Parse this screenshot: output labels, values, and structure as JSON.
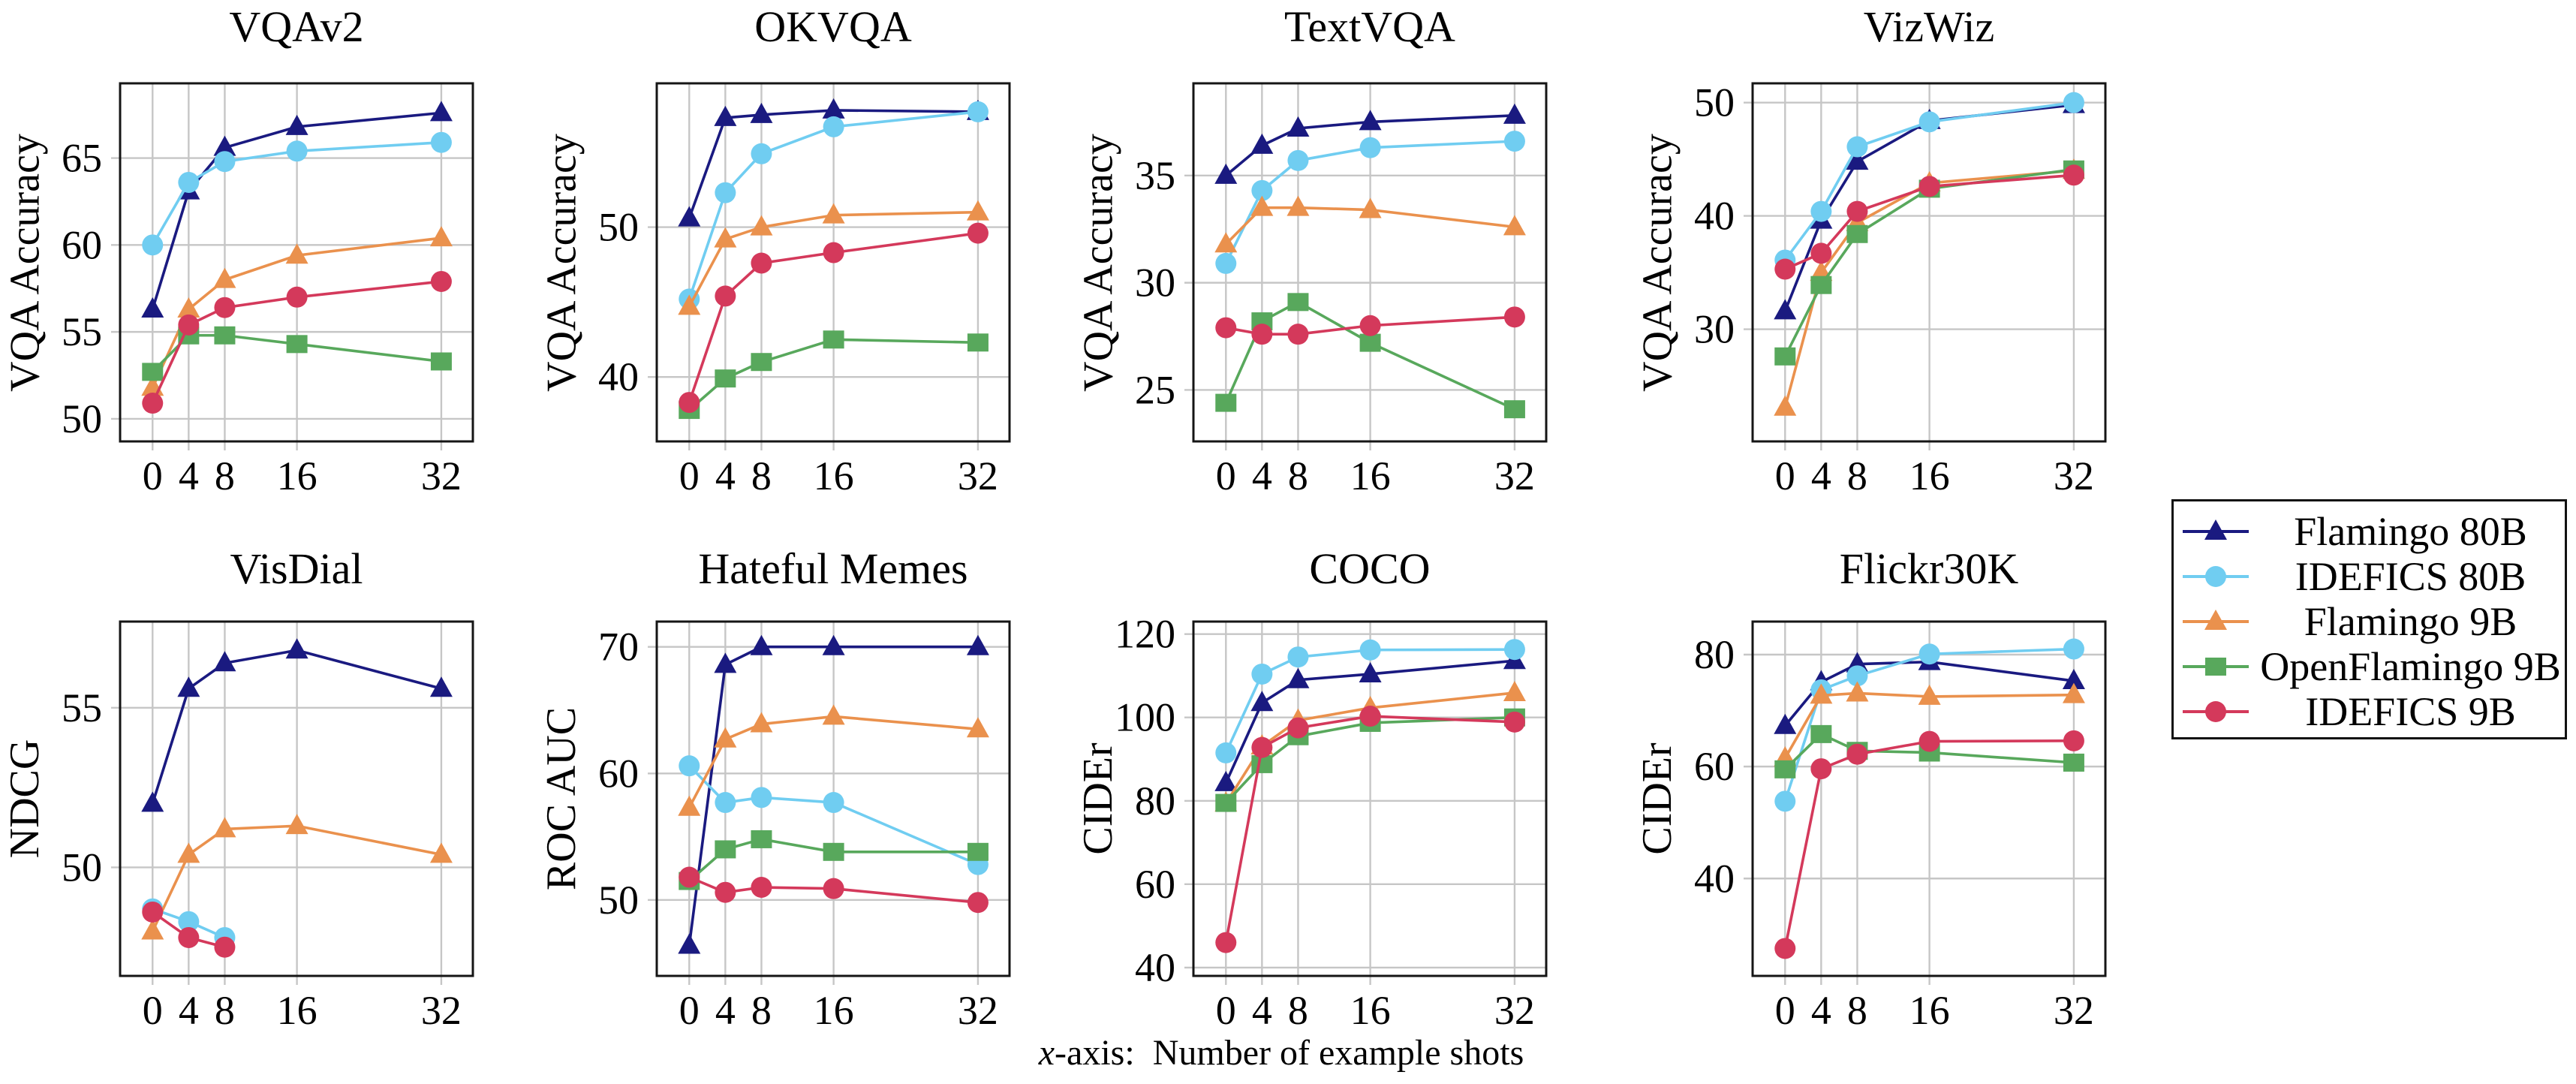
{
  "figure": {
    "caption_italic_x": "x",
    "caption_rest": "-axis:  Number of example shots"
  },
  "legend": {
    "position": "right-center",
    "entries": [
      {
        "label": "Flamingo 80B",
        "color": "#1a1a80",
        "marker": "triangle"
      },
      {
        "label": "IDEFICS 80B",
        "color": "#70cdf1",
        "marker": "circle"
      },
      {
        "label": "Flamingo 9B",
        "color": "#ea914d",
        "marker": "triangle"
      },
      {
        "label": "OpenFlamingo 9B",
        "color": "#58a85c",
        "marker": "square"
      },
      {
        "label": "IDEFICS 9B",
        "color": "#d4395b",
        "marker": "circle"
      }
    ]
  },
  "chart_data": [
    {
      "type": "line",
      "title": "VQAv2",
      "ylabel": "VQA Accuracy",
      "x": [
        0,
        4,
        8,
        16,
        32
      ],
      "xlim": [
        -3.6,
        35.5
      ],
      "yticks": [
        50,
        55,
        60,
        65
      ],
      "ylim": [
        48.7,
        69.3
      ],
      "grid": true,
      "series": [
        {
          "name": "Flamingo 80B",
          "values": [
            56.3,
            63.1,
            65.6,
            66.8,
            67.6
          ]
        },
        {
          "name": "IDEFICS 80B",
          "values": [
            60.0,
            63.6,
            64.8,
            65.4,
            65.9
          ]
        },
        {
          "name": "Flamingo 9B",
          "values": [
            51.8,
            56.3,
            58.0,
            59.4,
            60.4
          ]
        },
        {
          "name": "OpenFlamingo 9B",
          "values": [
            52.7,
            54.8,
            54.8,
            54.3,
            53.3
          ]
        },
        {
          "name": "IDEFICS 9B",
          "values": [
            50.9,
            55.4,
            56.4,
            57.0,
            57.9
          ]
        }
      ]
    },
    {
      "type": "line",
      "title": "OKVQA",
      "ylabel": "VQA Accuracy",
      "x": [
        0,
        4,
        8,
        16,
        32
      ],
      "xlim": [
        -3.6,
        35.5
      ],
      "yticks": [
        40,
        50
      ],
      "ylim": [
        35.7,
        59.6
      ],
      "grid": true,
      "series": [
        {
          "name": "Flamingo 80B",
          "values": [
            50.6,
            57.3,
            57.5,
            57.8,
            57.7
          ]
        },
        {
          "name": "IDEFICS 80B",
          "values": [
            45.2,
            52.3,
            54.9,
            56.7,
            57.7
          ]
        },
        {
          "name": "Flamingo 9B",
          "values": [
            44.7,
            49.2,
            50.0,
            50.8,
            51.0
          ]
        },
        {
          "name": "OpenFlamingo 9B",
          "values": [
            37.8,
            39.9,
            41.0,
            42.5,
            42.3
          ]
        },
        {
          "name": "IDEFICS 9B",
          "values": [
            38.3,
            45.4,
            47.6,
            48.3,
            49.6
          ]
        }
      ]
    },
    {
      "type": "line",
      "title": "TextVQA",
      "ylabel": "VQA Accuracy",
      "x": [
        0,
        4,
        8,
        16,
        32
      ],
      "xlim": [
        -3.6,
        35.5
      ],
      "yticks": [
        25,
        30,
        35
      ],
      "ylim": [
        22.6,
        39.3
      ],
      "grid": true,
      "series": [
        {
          "name": "Flamingo 80B",
          "values": [
            35.0,
            36.4,
            37.2,
            37.5,
            37.8
          ]
        },
        {
          "name": "IDEFICS 80B",
          "values": [
            30.9,
            34.3,
            35.7,
            36.3,
            36.6
          ]
        },
        {
          "name": "Flamingo 9B",
          "values": [
            31.8,
            33.5,
            33.5,
            33.4,
            32.6
          ]
        },
        {
          "name": "OpenFlamingo 9B",
          "values": [
            24.4,
            28.2,
            29.1,
            27.2,
            24.1
          ]
        },
        {
          "name": "IDEFICS 9B",
          "values": [
            27.9,
            27.6,
            27.6,
            28.0,
            28.4
          ]
        }
      ]
    },
    {
      "type": "line",
      "title": "VizWiz",
      "ylabel": "VQA Accuracy",
      "x": [
        0,
        4,
        8,
        16,
        32
      ],
      "xlim": [
        -3.6,
        35.5
      ],
      "yticks": [
        30,
        40,
        50
      ],
      "ylim": [
        20.1,
        51.7
      ],
      "grid": true,
      "series": [
        {
          "name": "Flamingo 80B",
          "values": [
            31.6,
            39.6,
            44.8,
            48.4,
            49.8
          ]
        },
        {
          "name": "IDEFICS 80B",
          "values": [
            36.1,
            40.4,
            46.1,
            48.3,
            50.0
          ]
        },
        {
          "name": "Flamingo 9B",
          "values": [
            23.1,
            35.0,
            39.4,
            42.9,
            44.0
          ]
        },
        {
          "name": "OpenFlamingo 9B",
          "values": [
            27.6,
            33.9,
            38.4,
            42.4,
            44.1
          ]
        },
        {
          "name": "IDEFICS 9B",
          "values": [
            35.3,
            36.7,
            40.4,
            42.6,
            43.6
          ]
        }
      ]
    },
    {
      "type": "line",
      "title": "VisDial",
      "ylabel": "NDCG",
      "x": [
        0,
        4,
        8,
        16,
        32
      ],
      "xlim": [
        -3.6,
        35.5
      ],
      "yticks": [
        50,
        55
      ],
      "ylim": [
        46.6,
        57.7
      ],
      "grid": true,
      "series": [
        {
          "name": "Flamingo 80B",
          "values": [
            52.0,
            55.6,
            56.4,
            56.8,
            55.6
          ]
        },
        {
          "name": "IDEFICS 80B",
          "x": [
            0,
            4,
            8
          ],
          "values": [
            48.7,
            48.3,
            47.8
          ]
        },
        {
          "name": "Flamingo 9B",
          "values": [
            48.0,
            50.4,
            51.2,
            51.3,
            50.4
          ]
        },
        {
          "name": "IDEFICS 9B",
          "x": [
            0,
            4,
            8
          ],
          "values": [
            48.6,
            47.8,
            47.5
          ]
        }
      ]
    },
    {
      "type": "line",
      "title": "Hateful Memes",
      "ylabel": "ROC AUC",
      "x": [
        0,
        4,
        8,
        16,
        32
      ],
      "xlim": [
        -3.6,
        35.5
      ],
      "yticks": [
        50,
        60,
        70
      ],
      "ylim": [
        44.0,
        72.0
      ],
      "grid": true,
      "series": [
        {
          "name": "Flamingo 80B",
          "values": [
            46.4,
            68.6,
            70.0,
            70.0,
            70.0
          ]
        },
        {
          "name": "IDEFICS 80B",
          "values": [
            60.6,
            57.7,
            58.1,
            57.7,
            52.8
          ]
        },
        {
          "name": "Flamingo 9B",
          "values": [
            57.3,
            62.7,
            63.9,
            64.5,
            63.5
          ]
        },
        {
          "name": "OpenFlamingo 9B",
          "values": [
            51.5,
            54.0,
            54.8,
            53.8,
            53.8
          ]
        },
        {
          "name": "IDEFICS 9B",
          "values": [
            51.8,
            50.6,
            51.0,
            50.9,
            49.8
          ]
        }
      ]
    },
    {
      "type": "line",
      "title": "COCO",
      "ylabel": "CIDEr",
      "x": [
        0,
        4,
        8,
        16,
        32
      ],
      "xlim": [
        -3.6,
        35.5
      ],
      "yticks": [
        40,
        60,
        80,
        100,
        120
      ],
      "ylim": [
        38,
        123
      ],
      "grid": true,
      "series": [
        {
          "name": "Flamingo 80B",
          "values": [
            84.3,
            103.5,
            109.0,
            110.4,
            113.6
          ]
        },
        {
          "name": "IDEFICS 80B",
          "values": [
            91.5,
            110.4,
            114.5,
            116.2,
            116.3
          ]
        },
        {
          "name": "Flamingo 9B",
          "values": [
            79.4,
            93.1,
            99.3,
            102.3,
            105.9
          ]
        },
        {
          "name": "OpenFlamingo 9B",
          "values": [
            79.5,
            88.8,
            95.5,
            98.7,
            100.0
          ]
        },
        {
          "name": "IDEFICS 9B",
          "values": [
            46.0,
            92.8,
            97.5,
            100.3,
            98.9
          ]
        }
      ]
    },
    {
      "type": "line",
      "title": "Flickr30K",
      "ylabel": "CIDEr",
      "x": [
        0,
        4,
        8,
        16,
        32
      ],
      "xlim": [
        -3.6,
        35.5
      ],
      "yticks": [
        40,
        60,
        80
      ],
      "ylim": [
        22.6,
        85.9
      ],
      "grid": true,
      "series": [
        {
          "name": "Flamingo 80B",
          "values": [
            67.3,
            75.1,
            78.3,
            78.7,
            75.3
          ]
        },
        {
          "name": "IDEFICS 80B",
          "values": [
            53.8,
            73.7,
            76.2,
            80.1,
            81.0
          ]
        },
        {
          "name": "Flamingo 9B",
          "values": [
            61.5,
            72.7,
            73.1,
            72.5,
            72.8
          ]
        },
        {
          "name": "OpenFlamingo 9B",
          "values": [
            59.5,
            65.8,
            62.8,
            62.5,
            60.7
          ]
        },
        {
          "name": "IDEFICS 9B",
          "values": [
            27.5,
            59.6,
            62.2,
            64.5,
            64.6
          ]
        }
      ]
    }
  ]
}
